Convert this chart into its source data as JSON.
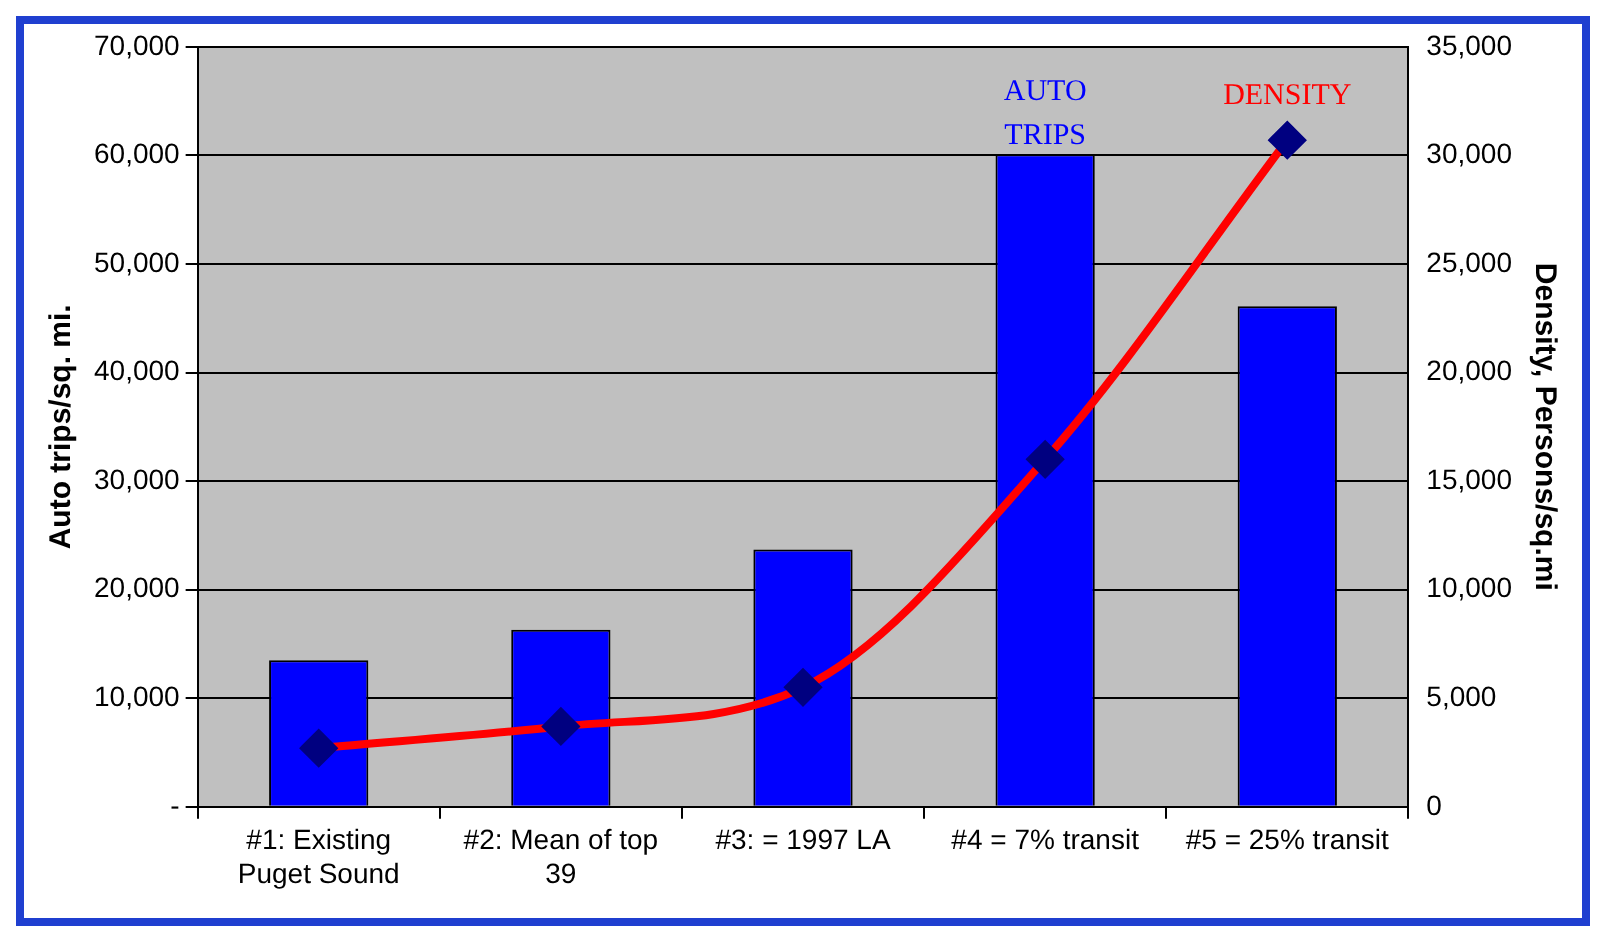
{
  "chart_data": {
    "type": "bar",
    "categories": [
      "#1: Existing Puget Sound",
      "#2: Mean of top 39",
      "#3: = 1997 LA",
      "#4 = 7% transit",
      "#5 = 25% transit"
    ],
    "ylabel": "Auto trips/sq. mi.",
    "y2label": "Density, Persons/sq.mi",
    "series": [
      {
        "name": "AUTO TRIPS",
        "color": "#0000ff",
        "values": [
          13500,
          16300,
          23700,
          60100,
          46100
        ]
      },
      {
        "name": "DENSITY",
        "type": "line",
        "axis": "y2",
        "color": "#ff0000",
        "values": [
          2700,
          3700,
          5500,
          16000,
          30700
        ]
      }
    ],
    "ylim": [
      0,
      70000
    ],
    "yticks": [
      {
        "value": 0,
        "label": "-"
      },
      {
        "value": 10000,
        "label": "10,000"
      },
      {
        "value": 20000,
        "label": "20,000"
      },
      {
        "value": 30000,
        "label": "30,000"
      },
      {
        "value": 40000,
        "label": "40,000"
      },
      {
        "value": 50000,
        "label": "50,000"
      },
      {
        "value": 60000,
        "label": "60,000"
      },
      {
        "value": 70000,
        "label": "70,000"
      }
    ],
    "y2lim": [
      0,
      35000
    ],
    "y2ticks": [
      0,
      {
        "value": 5000,
        "label": "5,000"
      },
      {
        "value": 10000,
        "label": "10,000"
      },
      {
        "value": 15000,
        "label": "15,000"
      },
      {
        "value": 20000,
        "label": "20,000"
      },
      {
        "value": 25000,
        "label": "25,000"
      },
      {
        "value": 30000,
        "label": "30,000"
      },
      {
        "value": 35000,
        "label": "35,000"
      }
    ],
    "grid": "y",
    "legend": false,
    "marker": "diamond",
    "line_style": "solid"
  }
}
